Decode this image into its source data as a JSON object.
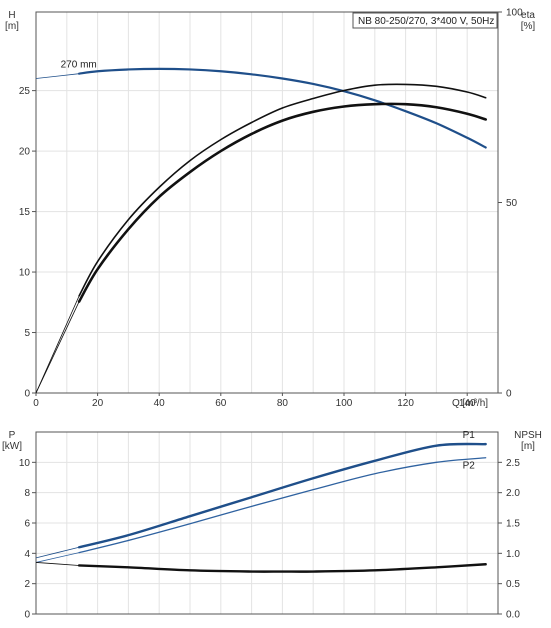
{
  "chart_data": [
    {
      "type": "line",
      "legend": "NB 80-250/270, 3*400 V, 50Hz",
      "xlabel": "Q [m³/h]",
      "xlim": [
        0,
        150
      ],
      "xticks": [
        0,
        20,
        40,
        60,
        80,
        100,
        120,
        140
      ],
      "y_left_label_line1": "H",
      "y_left_label_line2": "[m]",
      "ylim_left": [
        0,
        31.5
      ],
      "yticks_left": [
        0,
        5,
        10,
        15,
        20,
        25
      ],
      "y_right_label_line1": "eta",
      "y_right_label_line2": "[%]",
      "ylim_right": [
        0,
        100
      ],
      "yticks_right": [
        0,
        50,
        100
      ],
      "grid": true,
      "series": [
        {
          "name": "270 mm",
          "axis": "left",
          "color": "#1f4f8a",
          "extrapolated_x": [
            0,
            14
          ],
          "extrapolated_y": [
            26.0,
            26.4
          ],
          "x": [
            14,
            20,
            30,
            40,
            50,
            60,
            70,
            80,
            90,
            100,
            110,
            120,
            130,
            140,
            146
          ],
          "y": [
            26.4,
            26.6,
            26.75,
            26.8,
            26.75,
            26.6,
            26.35,
            26.0,
            25.55,
            24.95,
            24.2,
            23.3,
            22.3,
            21.1,
            20.3
          ]
        },
        {
          "axis": "right",
          "color": "#111111",
          "extrapolated_x": [
            0,
            14
          ],
          "extrapolated_y": [
            0,
            24
          ],
          "x": [
            14,
            20,
            30,
            40,
            50,
            60,
            70,
            80,
            90,
            100,
            110,
            120,
            130,
            140,
            146
          ],
          "y": [
            24,
            32.5,
            43,
            51.5,
            58,
            63.5,
            68,
            71.5,
            73.8,
            75.2,
            75.8,
            75.8,
            75.0,
            73.3,
            71.8
          ]
        },
        {
          "axis": "right",
          "color": "#111111",
          "extrapolated_x": [
            0,
            14
          ],
          "extrapolated_y": [
            0,
            25.5
          ],
          "x": [
            14,
            20,
            30,
            40,
            50,
            60,
            70,
            80,
            90,
            100,
            110,
            120,
            130,
            140,
            146
          ],
          "y": [
            25.5,
            34.5,
            45.5,
            54,
            61,
            66.5,
            71,
            74.8,
            77.3,
            79.4,
            80.8,
            81.0,
            80.5,
            79.0,
            77.5
          ]
        }
      ]
    },
    {
      "type": "line",
      "y_left_label_line1": "P",
      "y_left_label_line2": "[kW]",
      "ylim_left": [
        0,
        12.0
      ],
      "yticks_left": [
        0,
        2,
        4,
        6,
        8,
        10
      ],
      "y_right_label_line1": "NPSH",
      "y_right_label_line2": "[m]",
      "ylim_right": [
        0,
        3.0
      ],
      "yticks_right": [
        "0.0",
        "0.5",
        "1.0",
        "1.5",
        "2.0",
        "2.5"
      ],
      "xlim": [
        0,
        150
      ],
      "grid": true,
      "series": [
        {
          "name": "P1",
          "axis": "left",
          "color": "#1f4f8a",
          "extrapolated_x": [
            0,
            14
          ],
          "extrapolated_y": [
            3.7,
            4.4
          ],
          "x": [
            14,
            30,
            50,
            70,
            90,
            110,
            130,
            146
          ],
          "y": [
            4.4,
            5.2,
            6.45,
            7.7,
            8.95,
            10.1,
            11.1,
            11.2
          ]
        },
        {
          "name": "P2",
          "axis": "left",
          "color": "#2f62a0",
          "extrapolated_x": [
            0,
            14
          ],
          "extrapolated_y": [
            3.4,
            4.05
          ],
          "x": [
            14,
            30,
            50,
            70,
            90,
            110,
            130,
            146
          ],
          "y": [
            4.05,
            4.85,
            5.95,
            7.1,
            8.2,
            9.25,
            10.0,
            10.3
          ]
        },
        {
          "axis": "right",
          "color": "#111111",
          "extrapolated_x": [
            0,
            14
          ],
          "extrapolated_y": [
            0.85,
            0.8
          ],
          "x": [
            14,
            30,
            50,
            70,
            80,
            90,
            110,
            130,
            146
          ],
          "y": [
            0.8,
            0.77,
            0.72,
            0.7,
            0.7,
            0.7,
            0.72,
            0.77,
            0.82
          ]
        }
      ]
    }
  ]
}
